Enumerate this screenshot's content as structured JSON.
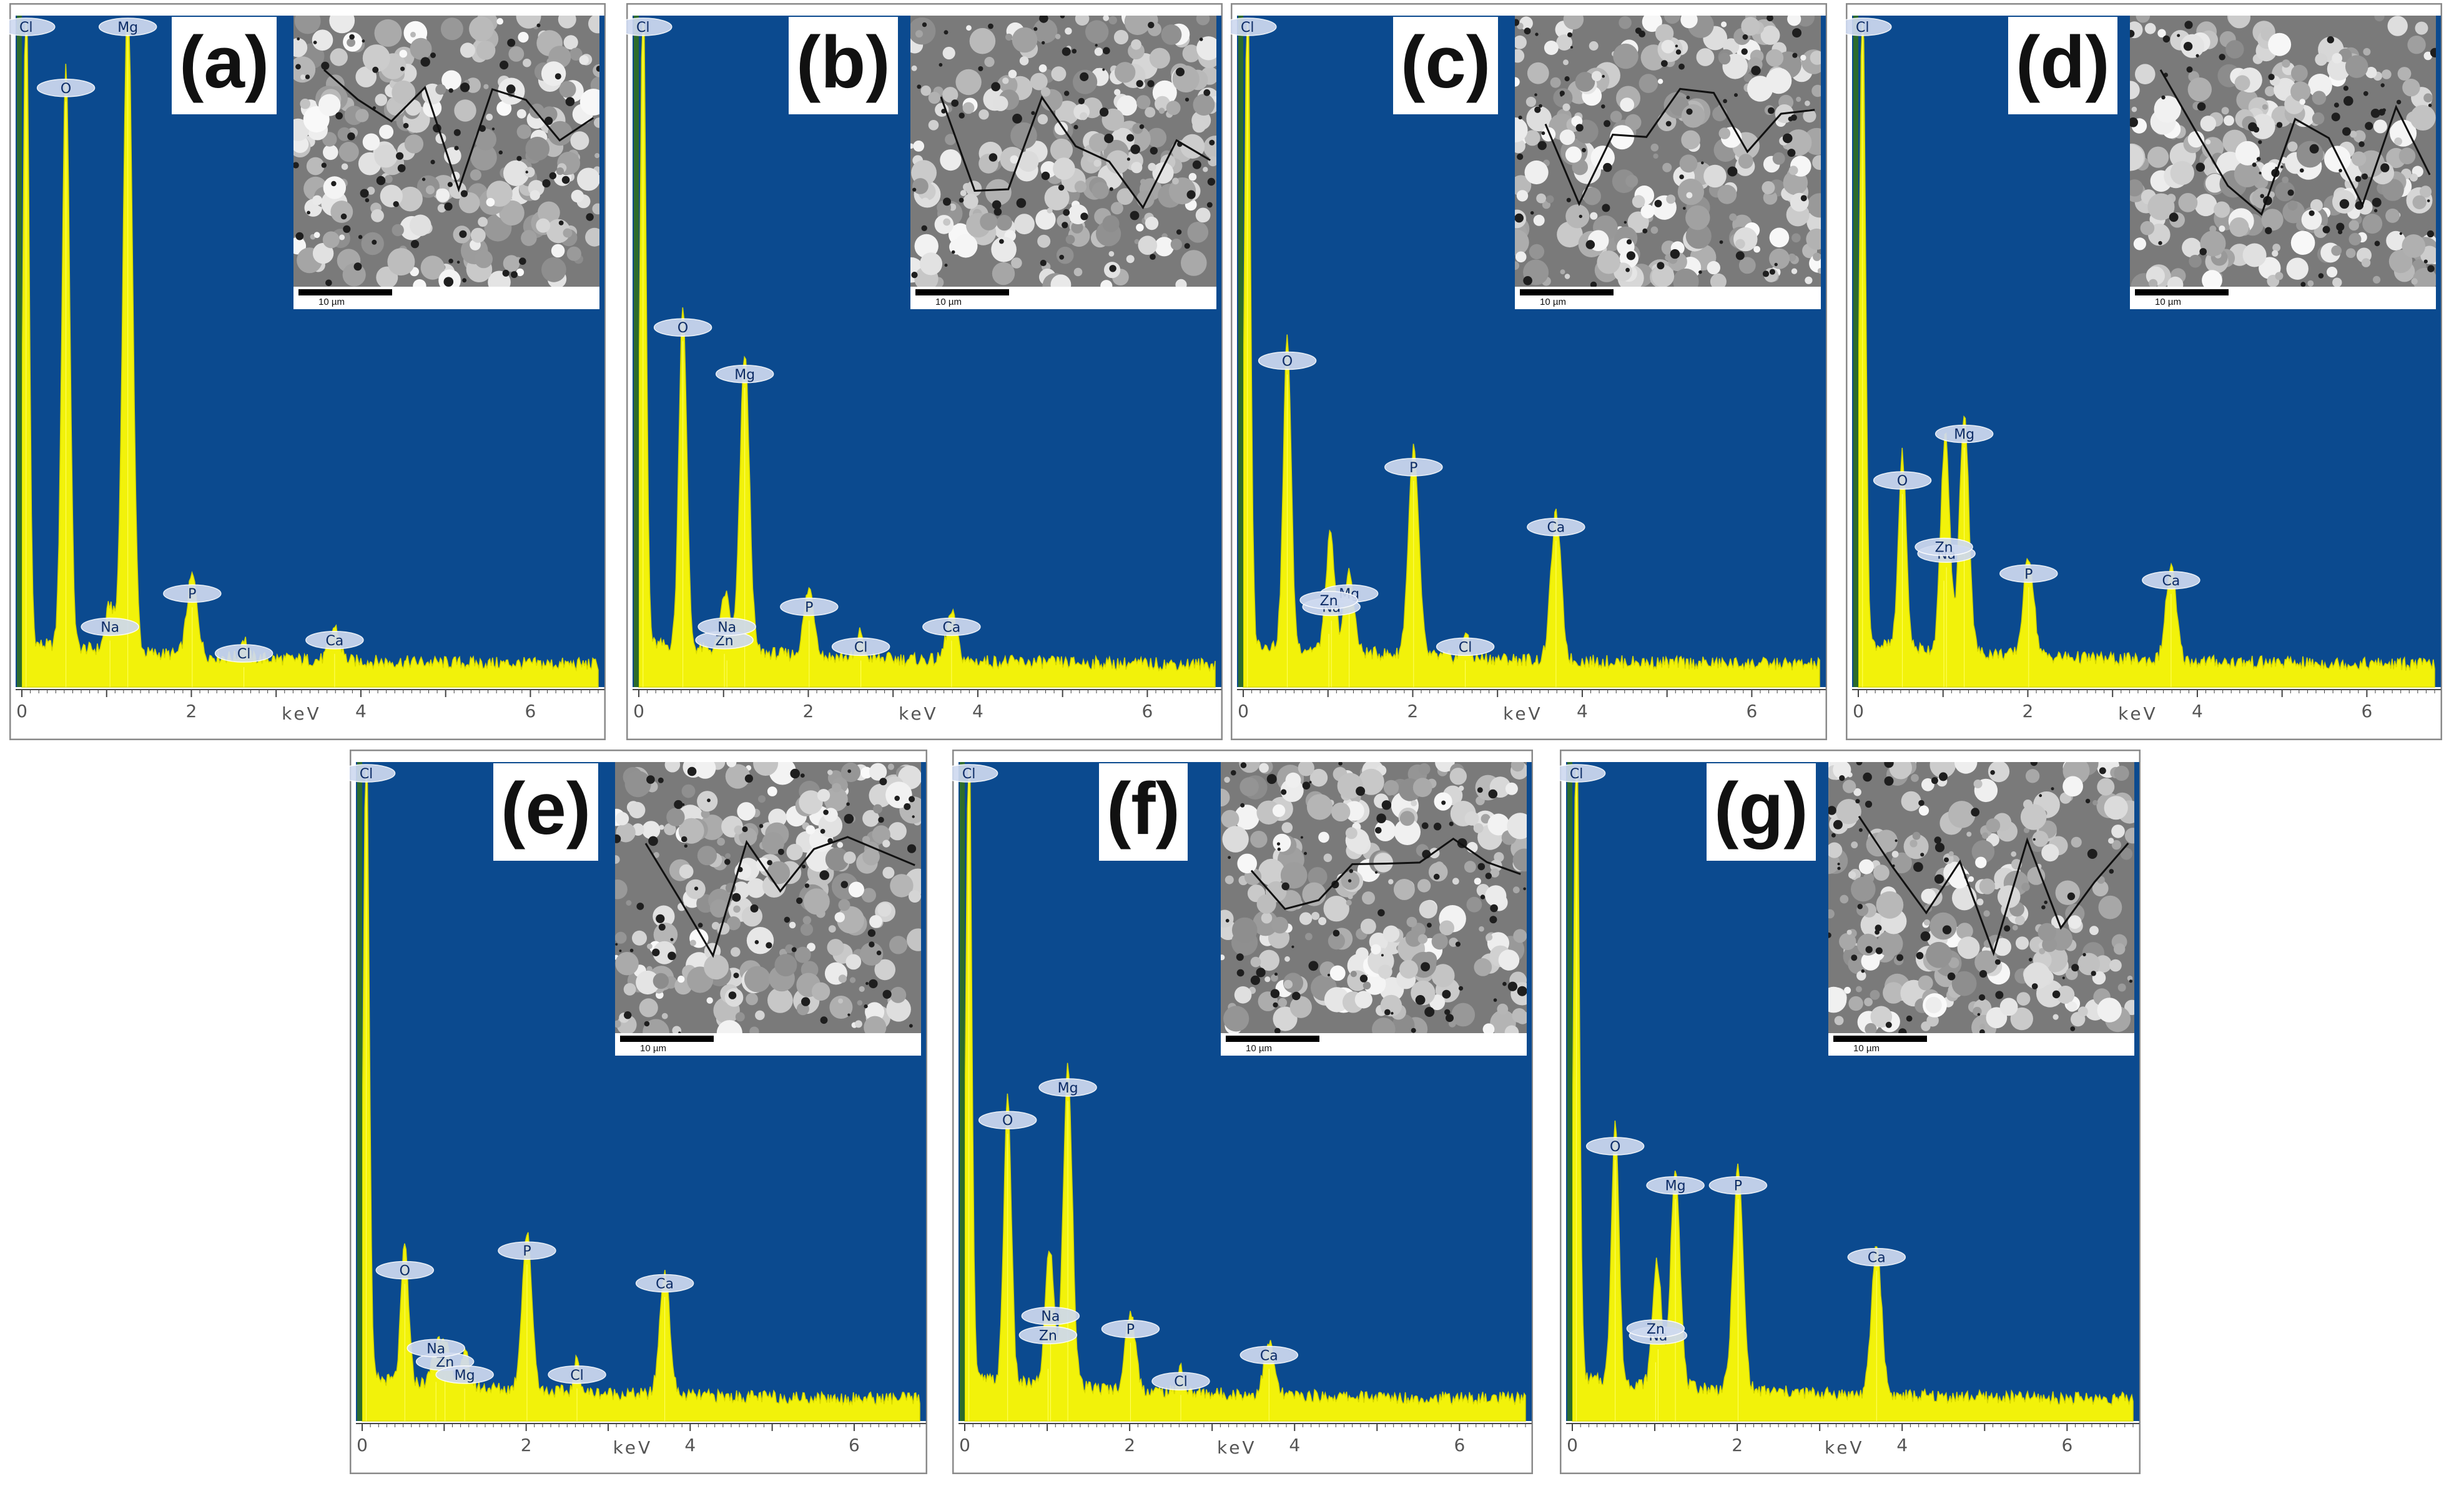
{
  "colors": {
    "plot_bg": "#0b4a8f",
    "spectrum": "#f2f20a",
    "baseline": "#2c6b2c",
    "peak_label_fill": "#cfdaf0",
    "peak_label_text": "#0d2c66"
  },
  "scale_bar_text": "10 µm",
  "chart_data": [
    {
      "type": "area",
      "panel_label": "(a)",
      "xlabel": "keV",
      "xlim": [
        0,
        6.8
      ],
      "x_ticks": [
        "0",
        "2",
        "4",
        "6"
      ],
      "ylim": [
        0,
        100
      ],
      "grid": false,
      "peaks": [
        {
          "element": "Cl",
          "energy": 0.05,
          "intensity": 100
        },
        {
          "element": "O",
          "energy": 0.52,
          "intensity": 88
        },
        {
          "element": "Mg",
          "energy": 1.25,
          "intensity": 100
        },
        {
          "element": "Na",
          "energy": 1.04,
          "intensity": 7
        },
        {
          "element": "P",
          "energy": 2.01,
          "intensity": 12
        },
        {
          "element": "Cl",
          "energy": 2.62,
          "intensity": 3
        },
        {
          "element": "Ca",
          "energy": 3.69,
          "intensity": 5
        }
      ]
    },
    {
      "type": "area",
      "panel_label": "(b)",
      "xlabel": "keV",
      "xlim": [
        0,
        6.8
      ],
      "x_ticks": [
        "0",
        "2",
        "4",
        "6"
      ],
      "ylim": [
        0,
        100
      ],
      "grid": false,
      "peaks": [
        {
          "element": "Cl",
          "energy": 0.05,
          "intensity": 100
        },
        {
          "element": "O",
          "energy": 0.52,
          "intensity": 52
        },
        {
          "element": "Mg",
          "energy": 1.25,
          "intensity": 45
        },
        {
          "element": "Zn",
          "energy": 1.01,
          "intensity": 5
        },
        {
          "element": "Na",
          "energy": 1.04,
          "intensity": 4
        },
        {
          "element": "P",
          "energy": 2.01,
          "intensity": 10
        },
        {
          "element": "Cl",
          "energy": 2.62,
          "intensity": 4
        },
        {
          "element": "Ca",
          "energy": 3.69,
          "intensity": 7
        }
      ]
    },
    {
      "type": "area",
      "panel_label": "(c)",
      "xlabel": "keV",
      "xlim": [
        0,
        6.8
      ],
      "x_ticks": [
        "0",
        "2",
        "4",
        "6"
      ],
      "ylim": [
        0,
        100
      ],
      "grid": false,
      "peaks": [
        {
          "element": "Cl",
          "energy": 0.05,
          "intensity": 100
        },
        {
          "element": "O",
          "energy": 0.52,
          "intensity": 47
        },
        {
          "element": "Mg",
          "energy": 1.25,
          "intensity": 12
        },
        {
          "element": "Na",
          "energy": 1.04,
          "intensity": 10
        },
        {
          "element": "Zn",
          "energy": 1.01,
          "intensity": 8
        },
        {
          "element": "P",
          "energy": 2.01,
          "intensity": 31
        },
        {
          "element": "Cl",
          "energy": 2.62,
          "intensity": 4
        },
        {
          "element": "Ca",
          "energy": 3.69,
          "intensity": 22
        }
      ]
    },
    {
      "type": "area",
      "panel_label": "(d)",
      "xlabel": "keV",
      "xlim": [
        0,
        6.8
      ],
      "x_ticks": [
        "0",
        "2",
        "4",
        "6"
      ],
      "ylim": [
        0,
        100
      ],
      "grid": false,
      "peaks": [
        {
          "element": "Cl",
          "energy": 0.05,
          "intensity": 100
        },
        {
          "element": "O",
          "energy": 0.52,
          "intensity": 29
        },
        {
          "element": "Mg",
          "energy": 1.25,
          "intensity": 36
        },
        {
          "element": "Na",
          "energy": 1.04,
          "intensity": 18
        },
        {
          "element": "Zn",
          "energy": 1.01,
          "intensity": 16
        },
        {
          "element": "P",
          "energy": 2.01,
          "intensity": 15
        },
        {
          "element": "Ca",
          "energy": 3.69,
          "intensity": 14
        }
      ]
    },
    {
      "type": "area",
      "panel_label": "(e)",
      "xlabel": "keV",
      "xlim": [
        0,
        6.8
      ],
      "x_ticks": [
        "0",
        "2",
        "4",
        "6"
      ],
      "ylim": [
        0,
        100
      ],
      "grid": false,
      "peaks": [
        {
          "element": "Cl",
          "energy": 0.05,
          "intensity": 100
        },
        {
          "element": "O",
          "energy": 0.52,
          "intensity": 21
        },
        {
          "element": "Zn",
          "energy": 1.01,
          "intensity": 7
        },
        {
          "element": "Na",
          "energy": 0.9,
          "intensity": 6
        },
        {
          "element": "Mg",
          "energy": 1.25,
          "intensity": 5
        },
        {
          "element": "P",
          "energy": 2.01,
          "intensity": 24
        },
        {
          "element": "Cl",
          "energy": 2.62,
          "intensity": 5
        },
        {
          "element": "Ca",
          "energy": 3.69,
          "intensity": 19
        }
      ]
    },
    {
      "type": "area",
      "panel_label": "(f)",
      "xlabel": "keV",
      "xlim": [
        0,
        6.8
      ],
      "x_ticks": [
        "0",
        "2",
        "4",
        "6"
      ],
      "ylim": [
        0,
        100
      ],
      "grid": false,
      "peaks": [
        {
          "element": "Cl",
          "energy": 0.05,
          "intensity": 100
        },
        {
          "element": "O",
          "energy": 0.52,
          "intensity": 44
        },
        {
          "element": "Mg",
          "energy": 1.25,
          "intensity": 49
        },
        {
          "element": "Na",
          "energy": 1.04,
          "intensity": 14
        },
        {
          "element": "Zn",
          "energy": 1.01,
          "intensity": 8
        },
        {
          "element": "P",
          "energy": 2.01,
          "intensity": 12
        },
        {
          "element": "Cl",
          "energy": 2.62,
          "intensity": 4
        },
        {
          "element": "Ca",
          "energy": 3.69,
          "intensity": 8
        }
      ]
    },
    {
      "type": "area",
      "panel_label": "(g)",
      "xlabel": "keV",
      "xlim": [
        0,
        6.8
      ],
      "x_ticks": [
        "0",
        "2",
        "4",
        "6"
      ],
      "ylim": [
        0,
        100
      ],
      "grid": false,
      "peaks": [
        {
          "element": "Cl",
          "energy": 0.05,
          "intensity": 100
        },
        {
          "element": "O",
          "energy": 0.52,
          "intensity": 40
        },
        {
          "element": "Mg",
          "energy": 1.25,
          "intensity": 34
        },
        {
          "element": "Na",
          "energy": 1.04,
          "intensity": 11
        },
        {
          "element": "Zn",
          "energy": 1.01,
          "intensity": 9
        },
        {
          "element": "P",
          "energy": 2.01,
          "intensity": 34
        },
        {
          "element": "Ca",
          "energy": 3.69,
          "intensity": 23
        }
      ]
    }
  ]
}
